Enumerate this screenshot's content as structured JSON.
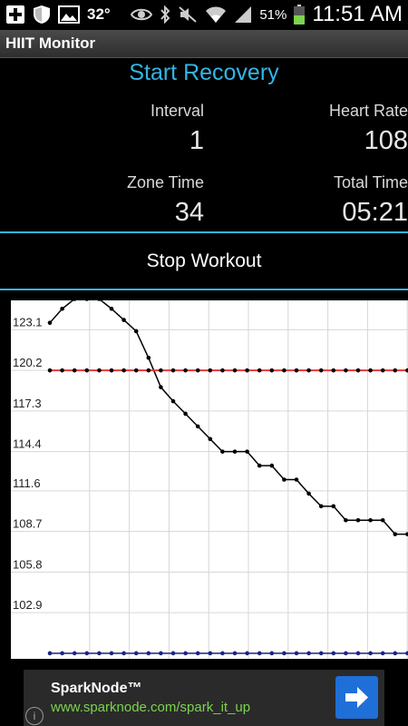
{
  "status_bar": {
    "temperature": "32°",
    "battery_percent": "51%",
    "time": "11:51 AM",
    "icons_left": [
      "add-icon",
      "shield-icon",
      "image-icon"
    ],
    "icons_right": [
      "eye-icon",
      "bluetooth-icon",
      "mute-icon",
      "wifi-icon",
      "signal-icon",
      "battery-icon"
    ]
  },
  "app": {
    "title": "HIIT Monitor"
  },
  "header": {
    "start_recovery": "Start Recovery"
  },
  "stats": {
    "interval_label": "Interval",
    "interval_value": "1",
    "heart_rate_label": "Heart Rate",
    "heart_rate_value": "108",
    "zone_time_label": "Zone Time",
    "zone_time_value": "34",
    "total_time_label": "Total Time",
    "total_time_value": "05:21"
  },
  "actions": {
    "stop_workout": "Stop Workout"
  },
  "colors": {
    "accent": "#33b5e5",
    "heart_series": "#000000",
    "threshold_line": "#e53935",
    "baseline_series": "#1a237e",
    "ad_url": "#7cd34f",
    "ad_button": "#1f6fd8"
  },
  "chart_data": {
    "type": "line",
    "ylim": [
      99.6,
      125.2
    ],
    "xlim": [
      0,
      29
    ],
    "grid": true,
    "y_ticks": [
      102.9,
      105.8,
      108.7,
      111.6,
      114.4,
      117.3,
      120.2,
      123.1
    ],
    "series": [
      {
        "values": [
          123.6,
          124.6,
          125.3,
          125.3,
          125.3,
          124.6,
          123.8,
          123.0,
          121.1,
          119.0,
          118.0,
          117.1,
          116.2,
          115.3,
          114.4,
          114.4,
          114.4,
          113.4,
          113.4,
          112.4,
          112.4,
          111.4,
          110.5,
          110.5,
          109.5,
          109.5,
          109.5,
          109.5,
          108.5,
          108.5
        ]
      },
      {
        "values": [
          120.2,
          120.2,
          120.2,
          120.2,
          120.2,
          120.2,
          120.2,
          120.2,
          120.2,
          120.2,
          120.2,
          120.2,
          120.2,
          120.2,
          120.2,
          120.2,
          120.2,
          120.2,
          120.2,
          120.2,
          120.2,
          120.2,
          120.2,
          120.2,
          120.2,
          120.2,
          120.2,
          120.2,
          120.2,
          120.2
        ]
      },
      {
        "values": [
          100.0,
          100.0,
          100.0,
          100.0,
          100.0,
          100.0,
          100.0,
          100.0,
          100.0,
          100.0,
          100.0,
          100.0,
          100.0,
          100.0,
          100.0,
          100.0,
          100.0,
          100.0,
          100.0,
          100.0,
          100.0,
          100.0,
          100.0,
          100.0,
          100.0,
          100.0,
          100.0,
          100.0,
          100.0,
          100.0
        ]
      }
    ]
  },
  "ad": {
    "title": "SparkNode™",
    "url": "www.sparknode.com/spark_it_up",
    "info": "i"
  }
}
